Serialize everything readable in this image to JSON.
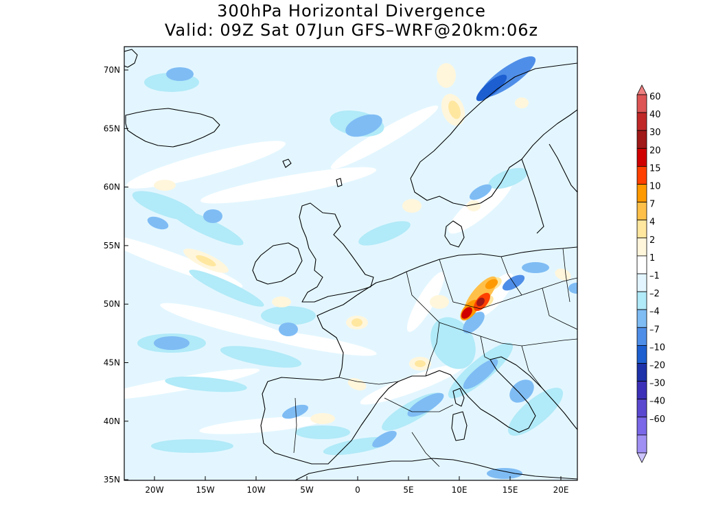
{
  "title": {
    "line1": "300hPa Horizontal Divergence",
    "line2": "Valid: 09Z Sat 07Jun GFS–WRF@20km:06z"
  },
  "lat_labels": [
    "70N",
    "65N",
    "60N",
    "55N",
    "50N",
    "45N",
    "40N",
    "35N"
  ],
  "lon_labels": [
    "20W",
    "15W",
    "10W",
    "5W",
    "0",
    "5E",
    "10E",
    "15E",
    "20E"
  ],
  "colorbar": {
    "labels": [
      "60",
      "40",
      "30",
      "20",
      "15",
      "10",
      "7",
      "4",
      "2",
      "1",
      "–1",
      "–2",
      "–4",
      "–7",
      "–10",
      "–20",
      "–30",
      "–40",
      "–60"
    ],
    "colors": [
      "#ee8080",
      "#dd5555",
      "#c02828",
      "#a01818",
      "#d00000",
      "#ff4000",
      "#ff9900",
      "#ffc04a",
      "#ffe7a0",
      "#fff6dc",
      "#ffffff",
      "#e3f6ff",
      "#b1eaf8",
      "#7fbcf4",
      "#4f8ee8",
      "#1d5fd0",
      "#1d31a8",
      "#3c30b8",
      "#5a48d0",
      "#7a68e8",
      "#a090f4",
      "#ccc4ff"
    ]
  },
  "field": {
    "background": "#e3f6ff",
    "land_color": "#000000",
    "grid": false
  }
}
